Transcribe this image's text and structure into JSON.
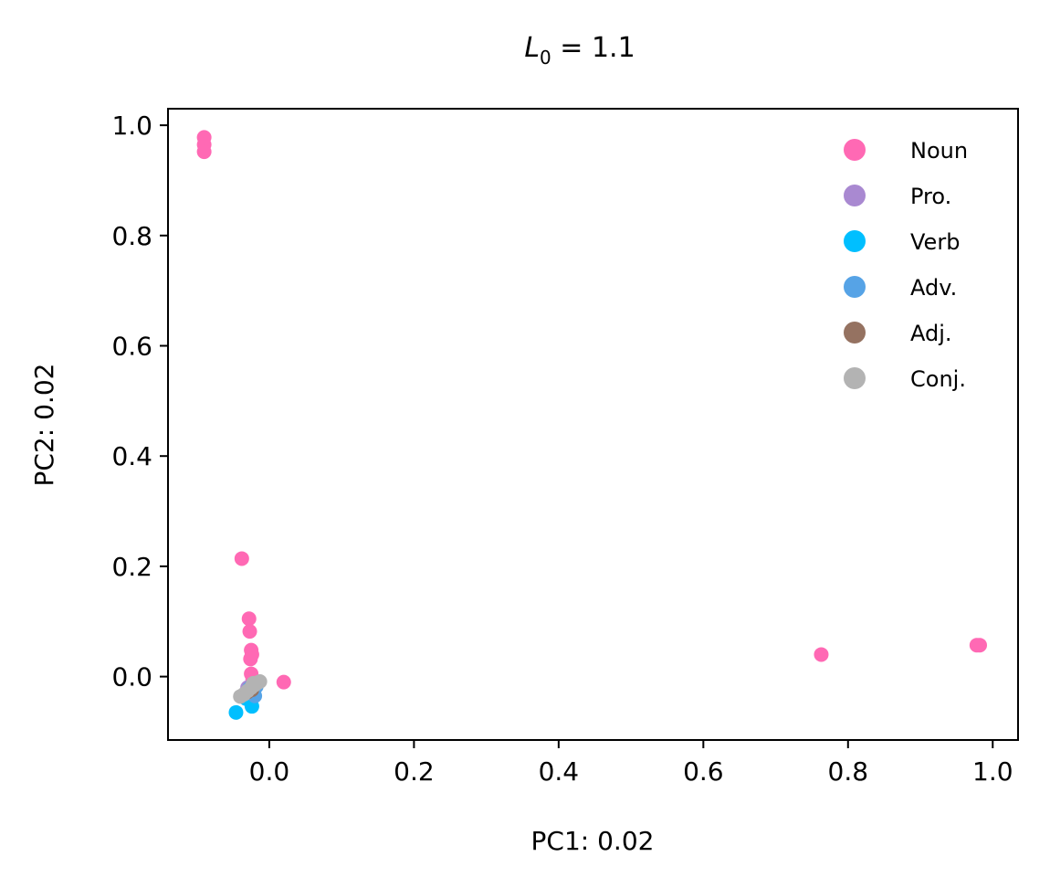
{
  "chart_data": {
    "type": "scatter",
    "title": "L0 = 1.1",
    "title_parts": {
      "var": "L",
      "sub": "0",
      "rest": " = 1.1"
    },
    "xlabel": "PC1: 0.02",
    "ylabel": "PC2: 0.02",
    "xlim": [
      -0.14,
      1.035
    ],
    "ylim": [
      -0.115,
      1.03
    ],
    "xticks": [
      0.0,
      0.2,
      0.4,
      0.6,
      0.8,
      1.0
    ],
    "xtick_labels": [
      "0.0",
      "0.2",
      "0.4",
      "0.6",
      "0.8",
      "1.0"
    ],
    "yticks": [
      0.0,
      0.2,
      0.4,
      0.6,
      0.8,
      1.0
    ],
    "ytick_labels": [
      "0.0",
      "0.2",
      "0.4",
      "0.6",
      "0.8",
      "1.0"
    ],
    "grid": false,
    "legend_position": "top-right",
    "series": [
      {
        "name": "Noun",
        "color": "#ff69b4",
        "points": [
          [
            -0.09,
            0.978
          ],
          [
            -0.09,
            0.965
          ],
          [
            -0.09,
            0.952
          ],
          [
            -0.038,
            0.214
          ],
          [
            -0.028,
            0.105
          ],
          [
            -0.027,
            0.082
          ],
          [
            -0.025,
            0.048
          ],
          [
            -0.024,
            0.04
          ],
          [
            -0.026,
            0.032
          ],
          [
            -0.025,
            0.005
          ],
          [
            -0.023,
            -0.005
          ],
          [
            0.02,
            -0.01
          ],
          [
            0.763,
            0.04
          ],
          [
            0.978,
            0.057
          ],
          [
            0.982,
            0.057
          ]
        ]
      },
      {
        "name": "Pro.",
        "color": "#a989d1",
        "points": [
          [
            -0.03,
            -0.02
          ],
          [
            -0.022,
            -0.015
          ]
        ]
      },
      {
        "name": "Verb",
        "color": "#00bfff",
        "points": [
          [
            -0.046,
            -0.065
          ],
          [
            -0.024,
            -0.054
          ],
          [
            -0.032,
            -0.04
          ]
        ]
      },
      {
        "name": "Adv.",
        "color": "#56a3e6",
        "points": [
          [
            -0.025,
            -0.03
          ],
          [
            -0.02,
            -0.035
          ],
          [
            -0.028,
            -0.022
          ],
          [
            -0.018,
            -0.018
          ]
        ]
      },
      {
        "name": "Adj.",
        "color": "#957261",
        "points": [
          [
            -0.03,
            -0.028
          ],
          [
            -0.024,
            -0.024
          ]
        ]
      },
      {
        "name": "Conj.",
        "color": "#b3b3b3",
        "points": [
          [
            -0.04,
            -0.036
          ],
          [
            -0.035,
            -0.032
          ],
          [
            -0.03,
            -0.026
          ],
          [
            -0.025,
            -0.02
          ],
          [
            -0.02,
            -0.015
          ],
          [
            -0.016,
            -0.011
          ],
          [
            -0.013,
            -0.009
          ],
          [
            -0.022,
            -0.012
          ]
        ]
      }
    ]
  }
}
